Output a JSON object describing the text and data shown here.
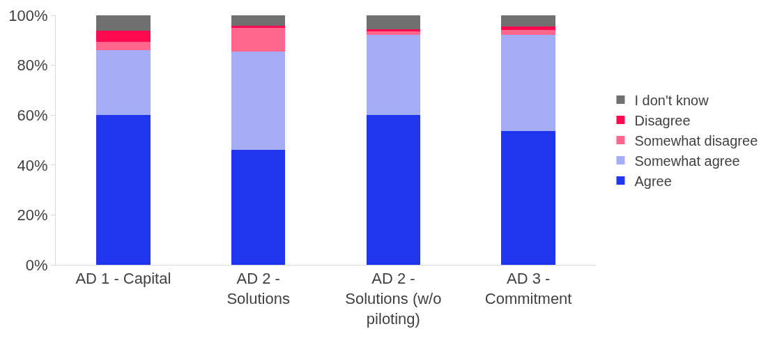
{
  "chart_data": {
    "type": "bar",
    "stacked": true,
    "categories": [
      "AD 1 - Capital",
      "AD 2 - Solutions",
      "AD 2 - Solutions (w/o piloting)",
      "AD 3 - Commitment"
    ],
    "series": [
      {
        "name": "Agree",
        "color": "#2035ee",
        "values": [
          60,
          46,
          60,
          53.5
        ]
      },
      {
        "name": "Somewhat agree",
        "color": "#a5adf7",
        "values": [
          26,
          39.6,
          32.3,
          38.7
        ]
      },
      {
        "name": "Somewhat disagree",
        "color": "#ff668c",
        "values": [
          3.3,
          9.3,
          1.3,
          2
        ]
      },
      {
        "name": "Disagree",
        "color": "#ff0a50",
        "values": [
          4.6,
          0.8,
          0.7,
          1.4
        ]
      },
      {
        "name": "I don't know",
        "color": "#707070",
        "values": [
          6.1,
          4.3,
          5.7,
          4.4
        ]
      }
    ],
    "ylim": [
      0,
      100
    ],
    "yticks": [
      {
        "value": 0,
        "label": "0%"
      },
      {
        "value": 20,
        "label": "20%"
      },
      {
        "value": 40,
        "label": "40%"
      },
      {
        "value": 60,
        "label": "60%"
      },
      {
        "value": 80,
        "label": "80%"
      },
      {
        "value": 100,
        "label": "100%"
      }
    ],
    "grid": false,
    "legend": "right"
  }
}
